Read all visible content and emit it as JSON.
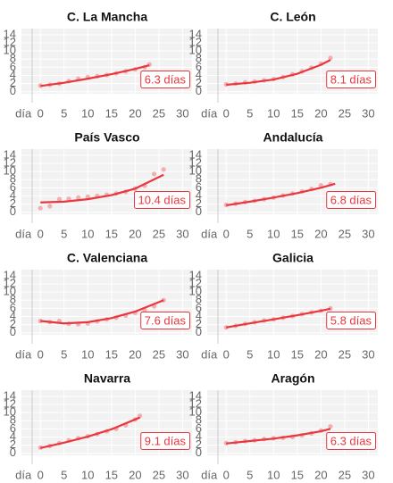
{
  "chart_data": [
    {
      "type": "scatter",
      "title": "C. La Mancha",
      "x_label": "día",
      "annotation": "6.3 días",
      "point_color": "#f29ca1",
      "fit_color": "#e8373e",
      "x": [
        0,
        2,
        4,
        6,
        8,
        10,
        12,
        14,
        16,
        18,
        20,
        22,
        23
      ],
      "values": [
        1.5,
        1.7,
        2.0,
        2.6,
        3.2,
        3.6,
        3.8,
        4.1,
        4.5,
        5.0,
        5.5,
        6.0,
        6.7
      ],
      "fit_x": [
        0,
        5,
        10,
        15,
        20,
        23
      ],
      "fit_values": [
        1.4,
        2.2,
        3.2,
        4.3,
        5.6,
        6.5
      ],
      "xlim": [
        -4,
        32
      ],
      "ylim": [
        -0.5,
        15.5
      ],
      "xticks": [
        0,
        5,
        10,
        15,
        20,
        25,
        30
      ],
      "yticks": [
        0,
        2,
        4,
        6,
        8,
        10,
        12,
        14
      ],
      "grid": true
    },
    {
      "type": "scatter",
      "title": "C. León",
      "x_label": "día",
      "annotation": "8.1 días",
      "point_color": "#f29ca1",
      "fit_color": "#e8373e",
      "x": [
        0,
        2,
        4,
        6,
        8,
        10,
        12,
        14,
        16,
        18,
        20,
        22
      ],
      "values": [
        1.8,
        2.0,
        2.3,
        2.5,
        2.8,
        3.1,
        3.6,
        4.3,
        5.0,
        5.9,
        6.9,
        8.3
      ],
      "fit_x": [
        0,
        5,
        10,
        15,
        20,
        22
      ],
      "fit_values": [
        1.7,
        2.2,
        3.0,
        4.4,
        6.6,
        7.8
      ],
      "xlim": [
        -4,
        32
      ],
      "ylim": [
        -0.5,
        15.5
      ],
      "xticks": [
        0,
        5,
        10,
        15,
        20,
        25,
        30
      ],
      "yticks": [
        0,
        2,
        4,
        6,
        8,
        10,
        12,
        14
      ],
      "grid": true
    },
    {
      "type": "scatter",
      "title": "País Vasco",
      "x_label": "día",
      "annotation": "10.4 días",
      "point_color": "#f29ca1",
      "fit_color": "#e8373e",
      "x": [
        0,
        2,
        4,
        6,
        8,
        10,
        12,
        14,
        16,
        18,
        20,
        22,
        24,
        26
      ],
      "values": [
        1.0,
        1.5,
        3.2,
        3.3,
        3.6,
        3.8,
        4.0,
        4.3,
        4.6,
        5.0,
        5.8,
        6.5,
        9.4,
        10.5
      ],
      "fit_x": [
        0,
        5,
        10,
        15,
        20,
        26
      ],
      "fit_values": [
        2.4,
        2.6,
        3.2,
        4.2,
        5.8,
        9.2
      ],
      "xlim": [
        -4,
        32
      ],
      "ylim": [
        -0.5,
        15.5
      ],
      "xticks": [
        0,
        5,
        10,
        15,
        20,
        25,
        30
      ],
      "yticks": [
        0,
        2,
        4,
        6,
        8,
        10,
        12,
        14
      ],
      "grid": true
    },
    {
      "type": "scatter",
      "title": "Andalucía",
      "x_label": "día",
      "annotation": "6.8 días",
      "point_color": "#f29ca1",
      "fit_color": "#e8373e",
      "x": [
        0,
        2,
        4,
        6,
        8,
        10,
        12,
        14,
        16,
        18,
        20,
        22
      ],
      "values": [
        1.8,
        2.1,
        2.5,
        2.8,
        3.2,
        3.6,
        4.1,
        4.6,
        5.1,
        5.7,
        6.6,
        6.9
      ],
      "fit_x": [
        0,
        5,
        10,
        15,
        20,
        23
      ],
      "fit_values": [
        1.7,
        2.6,
        3.6,
        4.7,
        6.0,
        7.0
      ],
      "xlim": [
        -4,
        32
      ],
      "ylim": [
        -0.5,
        15.5
      ],
      "xticks": [
        0,
        5,
        10,
        15,
        20,
        25,
        30
      ],
      "yticks": [
        0,
        2,
        4,
        6,
        8,
        10,
        12,
        14
      ],
      "grid": true
    },
    {
      "type": "scatter",
      "title": "C. Valenciana",
      "x_label": "día",
      "annotation": "7.6 días",
      "point_color": "#f29ca1",
      "fit_color": "#e8373e",
      "x": [
        0,
        2,
        4,
        6,
        8,
        10,
        12,
        14,
        16,
        18,
        20,
        22,
        24,
        26
      ],
      "values": [
        2.9,
        2.6,
        2.9,
        2.2,
        2.1,
        2.3,
        2.8,
        3.3,
        3.7,
        4.2,
        4.9,
        5.6,
        6.5,
        8.0
      ],
      "fit_x": [
        0,
        5,
        10,
        15,
        20,
        26
      ],
      "fit_values": [
        2.9,
        2.3,
        2.6,
        3.6,
        5.2,
        8.0
      ],
      "xlim": [
        -4,
        32
      ],
      "ylim": [
        -0.5,
        15.5
      ],
      "xticks": [
        0,
        5,
        10,
        15,
        20,
        25,
        30
      ],
      "yticks": [
        0,
        2,
        4,
        6,
        8,
        10,
        12,
        14
      ],
      "grid": true
    },
    {
      "type": "scatter",
      "title": "Galicia",
      "x_label": "día",
      "annotation": "5.8 días",
      "point_color": "#f29ca1",
      "fit_color": "#e8373e",
      "x": [
        0,
        2,
        4,
        6,
        8,
        10,
        12,
        14,
        16,
        18,
        20,
        22
      ],
      "values": [
        1.3,
        1.7,
        2.2,
        2.6,
        3.0,
        3.3,
        3.7,
        4.1,
        4.6,
        5.0,
        5.4,
        6.0
      ],
      "fit_x": [
        0,
        5,
        10,
        15,
        20,
        22
      ],
      "fit_values": [
        1.3,
        2.3,
        3.3,
        4.3,
        5.4,
        5.9
      ],
      "xlim": [
        -4,
        32
      ],
      "ylim": [
        -0.5,
        15.5
      ],
      "xticks": [
        0,
        5,
        10,
        15,
        20,
        25,
        30
      ],
      "yticks": [
        0,
        2,
        4,
        6,
        8,
        10,
        12,
        14
      ],
      "grid": true
    },
    {
      "type": "scatter",
      "title": "Navarra",
      "x_label": "día",
      "annotation": "9.1 días",
      "point_color": "#f29ca1",
      "fit_color": "#e8373e",
      "x": [
        0,
        2,
        4,
        6,
        8,
        10,
        12,
        14,
        16,
        18,
        20,
        21
      ],
      "values": [
        1.4,
        1.8,
        2.5,
        3.2,
        3.7,
        4.2,
        4.7,
        5.4,
        6.0,
        6.9,
        8.3,
        9.2
      ],
      "fit_x": [
        0,
        5,
        10,
        15,
        21
      ],
      "fit_values": [
        1.3,
        2.6,
        4.1,
        5.9,
        8.8
      ],
      "xlim": [
        -4,
        32
      ],
      "ylim": [
        -0.5,
        15.5
      ],
      "xticks": [
        0,
        5,
        10,
        15,
        20,
        25,
        30
      ],
      "yticks": [
        0,
        2,
        4,
        6,
        8,
        10,
        12,
        14
      ],
      "grid": true
    },
    {
      "type": "scatter",
      "title": "Aragón",
      "x_label": "día",
      "annotation": "6.3 días",
      "point_color": "#f29ca1",
      "fit_color": "#e8373e",
      "x": [
        0,
        2,
        4,
        6,
        8,
        10,
        12,
        14,
        16,
        18,
        20,
        22
      ],
      "values": [
        2.5,
        2.7,
        3.0,
        3.2,
        3.5,
        3.7,
        3.8,
        4.0,
        4.4,
        4.9,
        5.6,
        6.6
      ],
      "fit_x": [
        0,
        5,
        10,
        15,
        20,
        22
      ],
      "fit_values": [
        2.4,
        3.0,
        3.6,
        4.4,
        5.4,
        6.0
      ],
      "xlim": [
        -4,
        32
      ],
      "ylim": [
        -0.5,
        15.5
      ],
      "xticks": [
        0,
        5,
        10,
        15,
        20,
        25,
        30
      ],
      "yticks": [
        0,
        2,
        4,
        6,
        8,
        10,
        12,
        14
      ],
      "grid": true
    }
  ]
}
